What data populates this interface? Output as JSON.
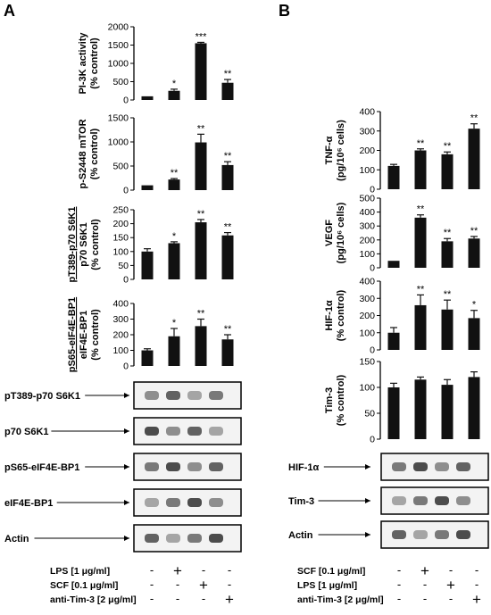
{
  "panel_labels": {
    "a": "A",
    "b": "B"
  },
  "chart_data": [
    {
      "type": "bar",
      "panel": "A",
      "ylabel": [
        "PI-3K activity",
        "(% control)"
      ],
      "yticks": [
        0,
        500,
        1000,
        1500,
        2000
      ],
      "ylim": [
        0,
        2000
      ],
      "values": [
        100,
        250,
        1550,
        470
      ],
      "errors": [
        0,
        45,
        25,
        90
      ],
      "sig": [
        "",
        "*",
        "***",
        "**"
      ]
    },
    {
      "type": "bar",
      "panel": "A",
      "ylabel": [
        "p-S2448 mTOR",
        "(% control)"
      ],
      "yticks": [
        0,
        500,
        1000,
        1500
      ],
      "ylim": [
        0,
        1500
      ],
      "values": [
        100,
        220,
        990,
        520
      ],
      "errors": [
        0,
        20,
        170,
        70
      ],
      "sig": [
        "",
        "**",
        "**",
        "**"
      ]
    },
    {
      "type": "bar",
      "panel": "A",
      "ylabel": [
        "pT389-p70 S6K1",
        "p70 S6K1",
        "(% control)"
      ],
      "yticks": [
        0,
        50,
        100,
        150,
        200,
        250
      ],
      "ylim": [
        0,
        250
      ],
      "values": [
        100,
        130,
        205,
        158
      ],
      "errors": [
        10,
        5,
        10,
        10
      ],
      "sig": [
        "",
        "*",
        "**",
        "**"
      ]
    },
    {
      "type": "bar",
      "panel": "A",
      "ylabel": [
        "pS65-eIF4E-BP1",
        "eIF4E-BP1",
        "(% control)"
      ],
      "yticks": [
        0,
        100,
        200,
        300,
        400
      ],
      "ylim": [
        0,
        400
      ],
      "values": [
        100,
        190,
        255,
        170
      ],
      "errors": [
        10,
        50,
        45,
        30
      ],
      "sig": [
        "",
        "*",
        "**",
        "**"
      ]
    },
    {
      "type": "bar",
      "panel": "B",
      "ylabel": [
        "TNF-α",
        "(pg/10⁶ cells)"
      ],
      "yticks": [
        0,
        100,
        200,
        300,
        400
      ],
      "ylim": [
        0,
        400
      ],
      "values": [
        120,
        200,
        180,
        312
      ],
      "errors": [
        8,
        8,
        12,
        25
      ],
      "sig": [
        "",
        "**",
        "**",
        "**"
      ]
    },
    {
      "type": "bar",
      "panel": "B",
      "ylabel": [
        "VEGF",
        "(pg/10⁶ cells)"
      ],
      "yticks": [
        0,
        100,
        200,
        300,
        400,
        500
      ],
      "ylim": [
        0,
        500
      ],
      "values": [
        50,
        360,
        190,
        210
      ],
      "errors": [
        0,
        20,
        20,
        15
      ],
      "sig": [
        "",
        "**",
        "**",
        "**"
      ]
    },
    {
      "type": "bar",
      "panel": "B",
      "ylabel": [
        "HIF-1α",
        "(% control)"
      ],
      "yticks": [
        0,
        100,
        200,
        300,
        400
      ],
      "ylim": [
        0,
        400
      ],
      "values": [
        100,
        260,
        235,
        185
      ],
      "errors": [
        30,
        60,
        55,
        45
      ],
      "sig": [
        "",
        "**",
        "**",
        "*"
      ]
    },
    {
      "type": "bar",
      "panel": "B",
      "ylabel": [
        "Tim-3",
        "(% control)"
      ],
      "yticks": [
        0,
        50,
        100,
        150
      ],
      "ylim": [
        0,
        150
      ],
      "values": [
        100,
        115,
        105,
        120
      ],
      "errors": [
        8,
        5,
        10,
        10
      ],
      "sig": [
        "",
        "",
        "",
        ""
      ]
    }
  ],
  "blots_a": [
    "pT389-p70 S6K1",
    "p70 S6K1",
    "pS65-eIF4E-BP1",
    "eIF4E-BP1",
    "Actin"
  ],
  "blots_b": [
    "HIF-1α",
    "Tim-3",
    "Actin"
  ],
  "treatments_a": [
    {
      "label": "LPS [1 μg/ml]",
      "marks": [
        "-",
        "+",
        "-",
        "-"
      ]
    },
    {
      "label": "SCF [0.1 μg/ml]",
      "marks": [
        "-",
        "-",
        "+",
        "-"
      ]
    },
    {
      "label": "anti-Tim-3 [2 μg/ml]",
      "marks": [
        "-",
        "-",
        "-",
        "+"
      ]
    }
  ],
  "treatments_b": [
    {
      "label": "SCF [0.1 μg/ml]",
      "marks": [
        "-",
        "+",
        "-",
        "-"
      ]
    },
    {
      "label": "LPS [1 μg/ml]",
      "marks": [
        "-",
        "-",
        "+",
        "-"
      ]
    },
    {
      "label": "anti-Tim-3 [2 μg/ml]",
      "marks": [
        "-",
        "-",
        "-",
        "+"
      ]
    }
  ]
}
